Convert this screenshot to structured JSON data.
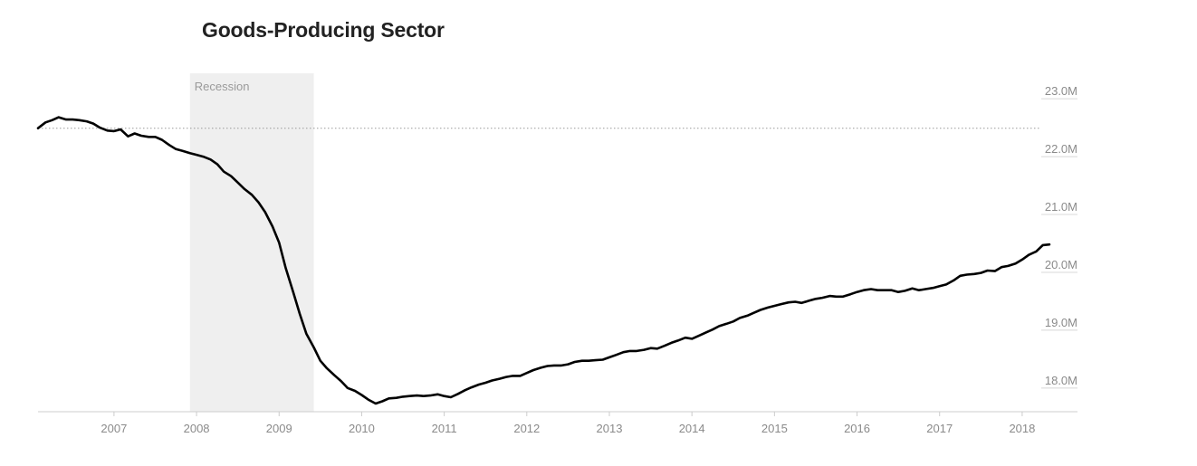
{
  "chart_data": {
    "type": "line",
    "title": "Goods-Producing Sector",
    "xlabel": "",
    "ylabel": "",
    "x_ticks": [
      "2007",
      "2008",
      "2009",
      "2010",
      "2011",
      "2012",
      "2013",
      "2014",
      "2015",
      "2016",
      "2017",
      "2018"
    ],
    "y_ticks": [
      "23.0M",
      "22.0M",
      "21.0M",
      "20.0M",
      "19.0M",
      "18.0M"
    ],
    "y_tick_values": [
      23.0,
      22.0,
      21.0,
      20.0,
      19.0,
      18.0
    ],
    "xlim": [
      2006.08,
      2018.67
    ],
    "ylim": [
      17.45,
      23.3
    ],
    "grid": false,
    "annotation": {
      "label": "Recession",
      "x_start": 2007.92,
      "x_end": 2009.42
    },
    "reference_line": {
      "y": 22.35,
      "style": "dotted"
    },
    "series": [
      {
        "values": [
          [
            2006.08,
            22.35
          ],
          [
            2006.17,
            22.45
          ],
          [
            2006.25,
            22.49
          ],
          [
            2006.33,
            22.54
          ],
          [
            2006.42,
            22.5
          ],
          [
            2006.5,
            22.5
          ],
          [
            2006.58,
            22.49
          ],
          [
            2006.67,
            22.47
          ],
          [
            2006.75,
            22.43
          ],
          [
            2006.83,
            22.36
          ],
          [
            2006.92,
            22.31
          ],
          [
            2007.0,
            22.3
          ],
          [
            2007.08,
            22.33
          ],
          [
            2007.17,
            22.21
          ],
          [
            2007.25,
            22.26
          ],
          [
            2007.33,
            22.22
          ],
          [
            2007.42,
            22.2
          ],
          [
            2007.5,
            22.2
          ],
          [
            2007.58,
            22.15
          ],
          [
            2007.67,
            22.06
          ],
          [
            2007.75,
            21.99
          ],
          [
            2007.83,
            21.96
          ],
          [
            2007.92,
            21.92
          ],
          [
            2008.0,
            21.89
          ],
          [
            2008.08,
            21.86
          ],
          [
            2008.17,
            21.81
          ],
          [
            2008.25,
            21.73
          ],
          [
            2008.33,
            21.6
          ],
          [
            2008.42,
            21.52
          ],
          [
            2008.5,
            21.41
          ],
          [
            2008.58,
            21.3
          ],
          [
            2008.67,
            21.2
          ],
          [
            2008.75,
            21.07
          ],
          [
            2008.83,
            20.9
          ],
          [
            2008.92,
            20.65
          ],
          [
            2009.0,
            20.37
          ],
          [
            2009.08,
            19.93
          ],
          [
            2009.17,
            19.52
          ],
          [
            2009.25,
            19.14
          ],
          [
            2009.33,
            18.8
          ],
          [
            2009.42,
            18.56
          ],
          [
            2009.5,
            18.33
          ],
          [
            2009.58,
            18.2
          ],
          [
            2009.67,
            18.08
          ],
          [
            2009.75,
            17.98
          ],
          [
            2009.83,
            17.86
          ],
          [
            2009.92,
            17.81
          ],
          [
            2010.0,
            17.74
          ],
          [
            2010.08,
            17.66
          ],
          [
            2010.17,
            17.59
          ],
          [
            2010.25,
            17.63
          ],
          [
            2010.33,
            17.68
          ],
          [
            2010.42,
            17.69
          ],
          [
            2010.5,
            17.71
          ],
          [
            2010.58,
            17.72
          ],
          [
            2010.67,
            17.73
          ],
          [
            2010.75,
            17.72
          ],
          [
            2010.83,
            17.73
          ],
          [
            2010.92,
            17.75
          ],
          [
            2011.0,
            17.72
          ],
          [
            2011.08,
            17.7
          ],
          [
            2011.17,
            17.76
          ],
          [
            2011.25,
            17.82
          ],
          [
            2011.33,
            17.87
          ],
          [
            2011.42,
            17.92
          ],
          [
            2011.5,
            17.95
          ],
          [
            2011.58,
            17.99
          ],
          [
            2011.67,
            18.02
          ],
          [
            2011.75,
            18.05
          ],
          [
            2011.83,
            18.07
          ],
          [
            2011.92,
            18.07
          ],
          [
            2012.0,
            18.12
          ],
          [
            2012.08,
            18.17
          ],
          [
            2012.17,
            18.21
          ],
          [
            2012.25,
            18.24
          ],
          [
            2012.33,
            18.25
          ],
          [
            2012.42,
            18.25
          ],
          [
            2012.5,
            18.27
          ],
          [
            2012.58,
            18.31
          ],
          [
            2012.67,
            18.33
          ],
          [
            2012.75,
            18.33
          ],
          [
            2012.83,
            18.34
          ],
          [
            2012.92,
            18.35
          ],
          [
            2013.0,
            18.39
          ],
          [
            2013.08,
            18.43
          ],
          [
            2013.17,
            18.48
          ],
          [
            2013.25,
            18.5
          ],
          [
            2013.33,
            18.5
          ],
          [
            2013.42,
            18.52
          ],
          [
            2013.5,
            18.55
          ],
          [
            2013.58,
            18.54
          ],
          [
            2013.67,
            18.59
          ],
          [
            2013.75,
            18.64
          ],
          [
            2013.83,
            18.68
          ],
          [
            2013.92,
            18.73
          ],
          [
            2014.0,
            18.71
          ],
          [
            2014.08,
            18.76
          ],
          [
            2014.17,
            18.82
          ],
          [
            2014.25,
            18.87
          ],
          [
            2014.33,
            18.93
          ],
          [
            2014.42,
            18.97
          ],
          [
            2014.5,
            19.01
          ],
          [
            2014.58,
            19.07
          ],
          [
            2014.67,
            19.11
          ],
          [
            2014.75,
            19.16
          ],
          [
            2014.83,
            19.21
          ],
          [
            2014.92,
            19.25
          ],
          [
            2015.0,
            19.28
          ],
          [
            2015.08,
            19.31
          ],
          [
            2015.17,
            19.34
          ],
          [
            2015.25,
            19.35
          ],
          [
            2015.33,
            19.33
          ],
          [
            2015.42,
            19.37
          ],
          [
            2015.5,
            19.4
          ],
          [
            2015.58,
            19.42
          ],
          [
            2015.67,
            19.45
          ],
          [
            2015.75,
            19.44
          ],
          [
            2015.83,
            19.44
          ],
          [
            2015.92,
            19.48
          ],
          [
            2016.0,
            19.52
          ],
          [
            2016.08,
            19.55
          ],
          [
            2016.17,
            19.57
          ],
          [
            2016.25,
            19.55
          ],
          [
            2016.33,
            19.55
          ],
          [
            2016.42,
            19.55
          ],
          [
            2016.5,
            19.52
          ],
          [
            2016.58,
            19.54
          ],
          [
            2016.67,
            19.58
          ],
          [
            2016.75,
            19.55
          ],
          [
            2016.83,
            19.57
          ],
          [
            2016.92,
            19.59
          ],
          [
            2017.0,
            19.62
          ],
          [
            2017.08,
            19.65
          ],
          [
            2017.17,
            19.72
          ],
          [
            2017.25,
            19.8
          ],
          [
            2017.33,
            19.82
          ],
          [
            2017.42,
            19.83
          ],
          [
            2017.5,
            19.85
          ],
          [
            2017.58,
            19.89
          ],
          [
            2017.67,
            19.88
          ],
          [
            2017.75,
            19.95
          ],
          [
            2017.83,
            19.97
          ],
          [
            2017.92,
            20.01
          ],
          [
            2018.0,
            20.08
          ],
          [
            2018.08,
            20.16
          ],
          [
            2018.17,
            20.22
          ],
          [
            2018.25,
            20.33
          ],
          [
            2018.33,
            20.34
          ]
        ]
      }
    ]
  },
  "colors": {
    "line": "#000000",
    "recession": "#efefef",
    "tick_text": "#8a8a8a",
    "axis": "#cccccc",
    "title": "#222222"
  }
}
